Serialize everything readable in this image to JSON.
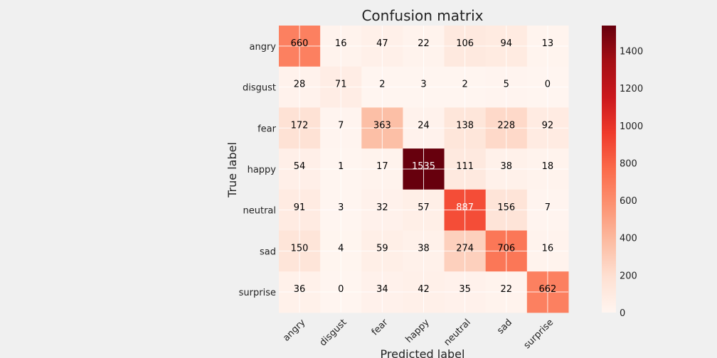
{
  "chart_data": {
    "type": "heatmap",
    "title": "Confusion matrix",
    "xlabel": "Predicted label",
    "ylabel": "True label",
    "x_categories": [
      "angry",
      "disgust",
      "fear",
      "happy",
      "neutral",
      "sad",
      "surprise"
    ],
    "y_categories": [
      "angry",
      "disgust",
      "fear",
      "happy",
      "neutral",
      "sad",
      "surprise"
    ],
    "values": [
      [
        660,
        16,
        47,
        22,
        106,
        94,
        13
      ],
      [
        28,
        71,
        2,
        3,
        2,
        5,
        0
      ],
      [
        172,
        7,
        363,
        24,
        138,
        228,
        92
      ],
      [
        54,
        1,
        17,
        1535,
        111,
        38,
        18
      ],
      [
        91,
        3,
        32,
        57,
        887,
        156,
        7
      ],
      [
        150,
        4,
        59,
        38,
        274,
        706,
        16
      ],
      [
        36,
        0,
        34,
        42,
        35,
        22,
        662
      ]
    ],
    "colormap": "Reds",
    "colorbar": {
      "range": [
        0,
        1535
      ],
      "ticks": [
        0,
        200,
        400,
        600,
        800,
        1000,
        1200,
        1400
      ]
    },
    "grid": true,
    "background_color": "#f0f0f0"
  }
}
